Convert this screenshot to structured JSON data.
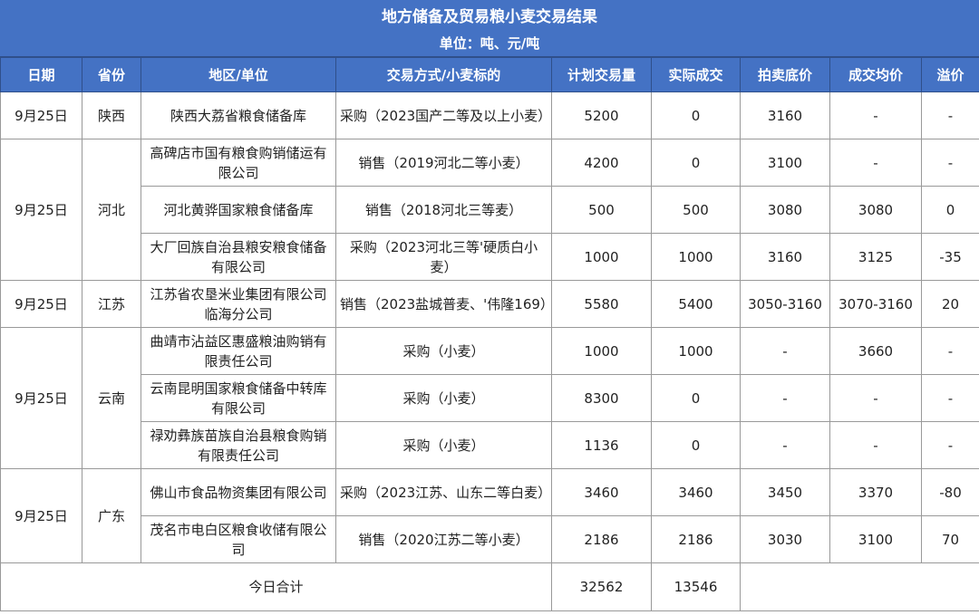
{
  "title": "地方储备及贸易粮小麦交易结果",
  "subtitle": "单位：吨、元/吨",
  "columns": [
    "日期",
    "省份",
    "地区/单位",
    "交易方式/小麦标的",
    "计划交易量",
    "实际成交",
    "拍卖底价",
    "成交均价",
    "溢价"
  ],
  "groups": [
    {
      "date": "9月25日",
      "province": "陕西",
      "rows": [
        [
          "陕西大荔省粮食储备库",
          "采购（2023国产二等及以上小麦）",
          "5200",
          "0",
          "3160",
          "-",
          "-"
        ]
      ]
    },
    {
      "date": "9月25日",
      "province": "河北",
      "rows": [
        [
          "高碑店市国有粮食购销储运有限公司",
          "销售（2019河北二等小麦）",
          "4200",
          "0",
          "3100",
          "-",
          "-"
        ],
        [
          "河北黄骅国家粮食储备库",
          "销售（2018河北三等麦）",
          "500",
          "500",
          "3080",
          "3080",
          "0"
        ],
        [
          "大厂回族自治县粮安粮食储备有限公司",
          "采购（2023河北三等'硬质白小麦）",
          "1000",
          "1000",
          "3160",
          "3125",
          "-35"
        ]
      ]
    },
    {
      "date": "9月25日",
      "province": "江苏",
      "rows": [
        [
          "江苏省农垦米业集团有限公司临海分公司",
          "销售（2023盐城普麦、'伟隆169）",
          "5580",
          "5400",
          "3050-3160",
          "3070-3160",
          "20"
        ]
      ]
    },
    {
      "date": "9月25日",
      "province": "云南",
      "rows": [
        [
          "曲靖市沾益区惠盛粮油购销有限责任公司",
          "采购（小麦）",
          "1000",
          "1000",
          "-",
          "3660",
          "-"
        ],
        [
          "云南昆明国家粮食储备中转库有限公司",
          "采购（小麦）",
          "8300",
          "0",
          "-",
          "-",
          "-"
        ],
        [
          "禄劝彝族苗族自治县粮食购销有限责任公司",
          "采购（小麦）",
          "1136",
          "0",
          "-",
          "-",
          "-"
        ]
      ]
    },
    {
      "date": "9月25日",
      "province": "广东",
      "rows": [
        [
          "佛山市食品物资集团有限公司",
          "采购（2023江苏、山东二等白麦）",
          "3460",
          "3460",
          "3450",
          "3370",
          "-80"
        ],
        [
          "茂名市电白区粮食收储有限公司",
          "销售（2020江苏二等小麦）",
          "2186",
          "2186",
          "3030",
          "3100",
          "70"
        ]
      ]
    }
  ],
  "total": {
    "label": "今日合计",
    "planned": "32562",
    "actual": "13546"
  }
}
